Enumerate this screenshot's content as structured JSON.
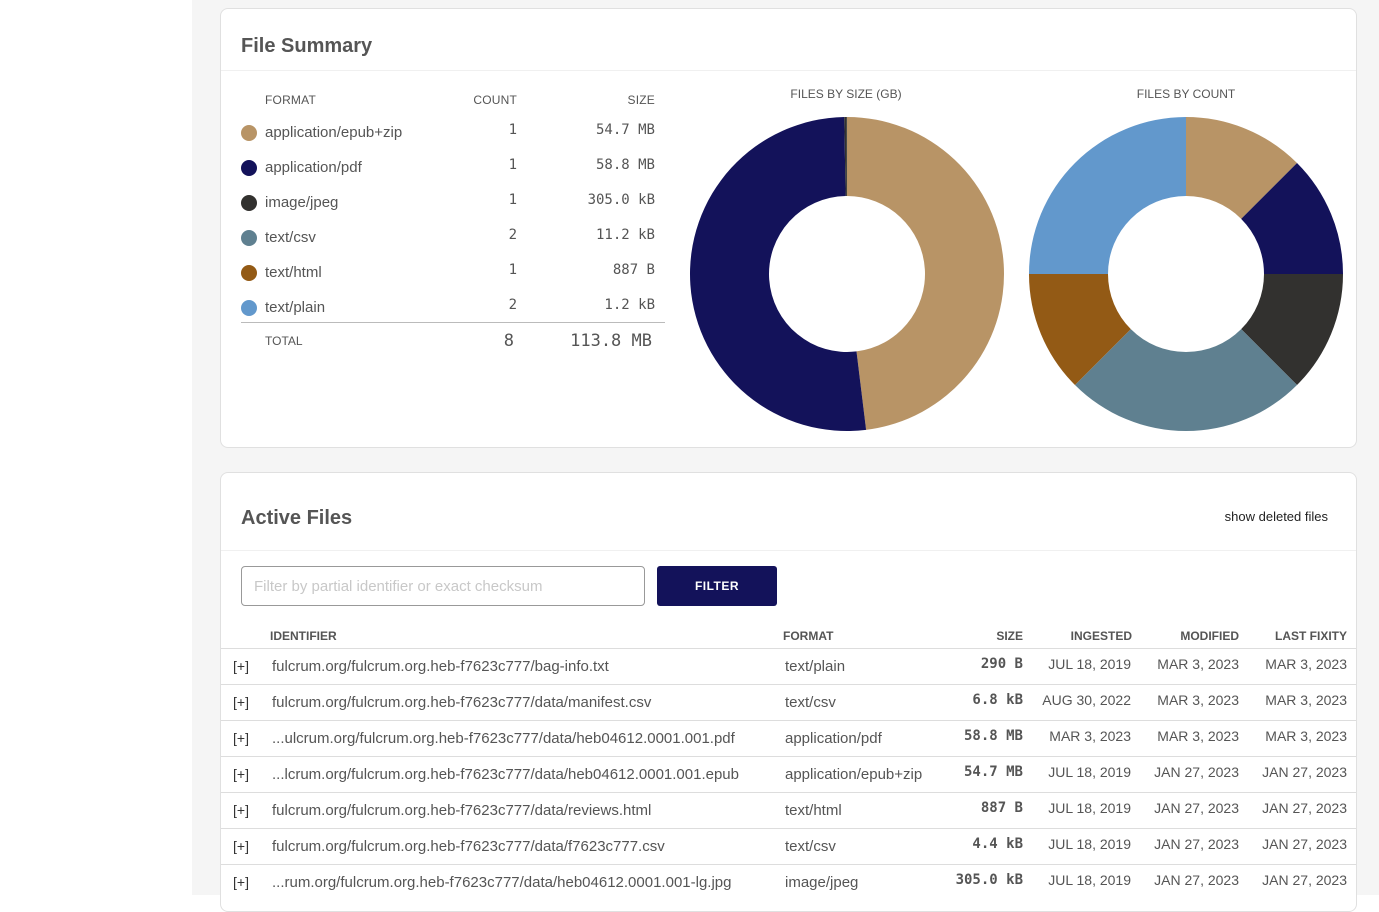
{
  "summary": {
    "title": "File Summary",
    "headers": {
      "format": "FORMAT",
      "count": "COUNT",
      "size": "SIZE"
    },
    "rows": [
      {
        "format": "application/epub+zip",
        "count": "1",
        "size": "54.7 MB",
        "color": "#b89466"
      },
      {
        "format": "application/pdf",
        "count": "1",
        "size": "58.8 MB",
        "color": "#13125a"
      },
      {
        "format": "image/jpeg",
        "count": "1",
        "size": "305.0 kB",
        "color": "#32312f"
      },
      {
        "format": "text/csv",
        "count": "2",
        "size": "11.2 kB",
        "color": "#5f8090"
      },
      {
        "format": "text/html",
        "count": "1",
        "size": "887 B",
        "color": "#935a15"
      },
      {
        "format": "text/plain",
        "count": "2",
        "size": "1.2 kB",
        "color": "#6298cc"
      }
    ],
    "total": {
      "label": "TOTAL",
      "count": "8",
      "size": "113.8 MB"
    }
  },
  "chart_data": [
    {
      "type": "pie",
      "title": "FILES BY SIZE (GB)",
      "categories": [
        "application/epub+zip",
        "application/pdf",
        "image/jpeg",
        "text/csv",
        "text/html",
        "text/plain"
      ],
      "values": [
        0.0547,
        0.0588,
        0.000305,
        1.12e-05,
        8.87e-07,
        1.2e-06
      ],
      "colors": [
        "#b89466",
        "#13125a",
        "#32312f",
        "#5f8090",
        "#935a15",
        "#6298cc"
      ]
    },
    {
      "type": "pie",
      "title": "FILES BY COUNT",
      "categories": [
        "application/epub+zip",
        "application/pdf",
        "image/jpeg",
        "text/csv",
        "text/html",
        "text/plain"
      ],
      "values": [
        1,
        1,
        1,
        2,
        1,
        2
      ],
      "colors": [
        "#b89466",
        "#13125a",
        "#32312f",
        "#5f8090",
        "#935a15",
        "#6298cc"
      ]
    }
  ],
  "files": {
    "title": "Active Files",
    "show_deleted_label": "show deleted files",
    "filter_placeholder": "Filter by partial identifier or exact checksum",
    "filter_value": "",
    "filter_button": "FILTER",
    "headers": {
      "identifier": "IDENTIFIER",
      "format": "FORMAT",
      "size": "SIZE",
      "ingested": "INGESTED",
      "modified": "MODIFIED",
      "last_fixity": "LAST FIXITY"
    },
    "expand_label": "[+]",
    "rows": [
      {
        "identifier": "fulcrum.org/fulcrum.org.heb-f7623c777/bag-info.txt",
        "format": "text/plain",
        "size": "290 B",
        "ingested": "JUL 18, 2019",
        "modified": "MAR 3, 2023",
        "last_fixity": "MAR 3, 2023"
      },
      {
        "identifier": "fulcrum.org/fulcrum.org.heb-f7623c777/data/manifest.csv",
        "format": "text/csv",
        "size": "6.8 kB",
        "ingested": "AUG 30, 2022",
        "modified": "MAR 3, 2023",
        "last_fixity": "MAR 3, 2023"
      },
      {
        "identifier": "...ulcrum.org/fulcrum.org.heb-f7623c777/data/heb04612.0001.001.pdf",
        "format": "application/pdf",
        "size": "58.8 MB",
        "ingested": "MAR 3, 2023",
        "modified": "MAR 3, 2023",
        "last_fixity": "MAR 3, 2023"
      },
      {
        "identifier": "...lcrum.org/fulcrum.org.heb-f7623c777/data/heb04612.0001.001.epub",
        "format": "application/epub+zip",
        "size": "54.7 MB",
        "ingested": "JUL 18, 2019",
        "modified": "JAN 27, 2023",
        "last_fixity": "JAN 27, 2023"
      },
      {
        "identifier": "fulcrum.org/fulcrum.org.heb-f7623c777/data/reviews.html",
        "format": "text/html",
        "size": "887 B",
        "ingested": "JUL 18, 2019",
        "modified": "JAN 27, 2023",
        "last_fixity": "JAN 27, 2023"
      },
      {
        "identifier": "fulcrum.org/fulcrum.org.heb-f7623c777/data/f7623c777.csv",
        "format": "text/csv",
        "size": "4.4 kB",
        "ingested": "JUL 18, 2019",
        "modified": "JAN 27, 2023",
        "last_fixity": "JAN 27, 2023"
      },
      {
        "identifier": "...rum.org/fulcrum.org.heb-f7623c777/data/heb04612.0001.001-lg.jpg",
        "format": "image/jpeg",
        "size": "305.0 kB",
        "ingested": "JUL 18, 2019",
        "modified": "JAN 27, 2023",
        "last_fixity": "JAN 27, 2023"
      }
    ]
  }
}
